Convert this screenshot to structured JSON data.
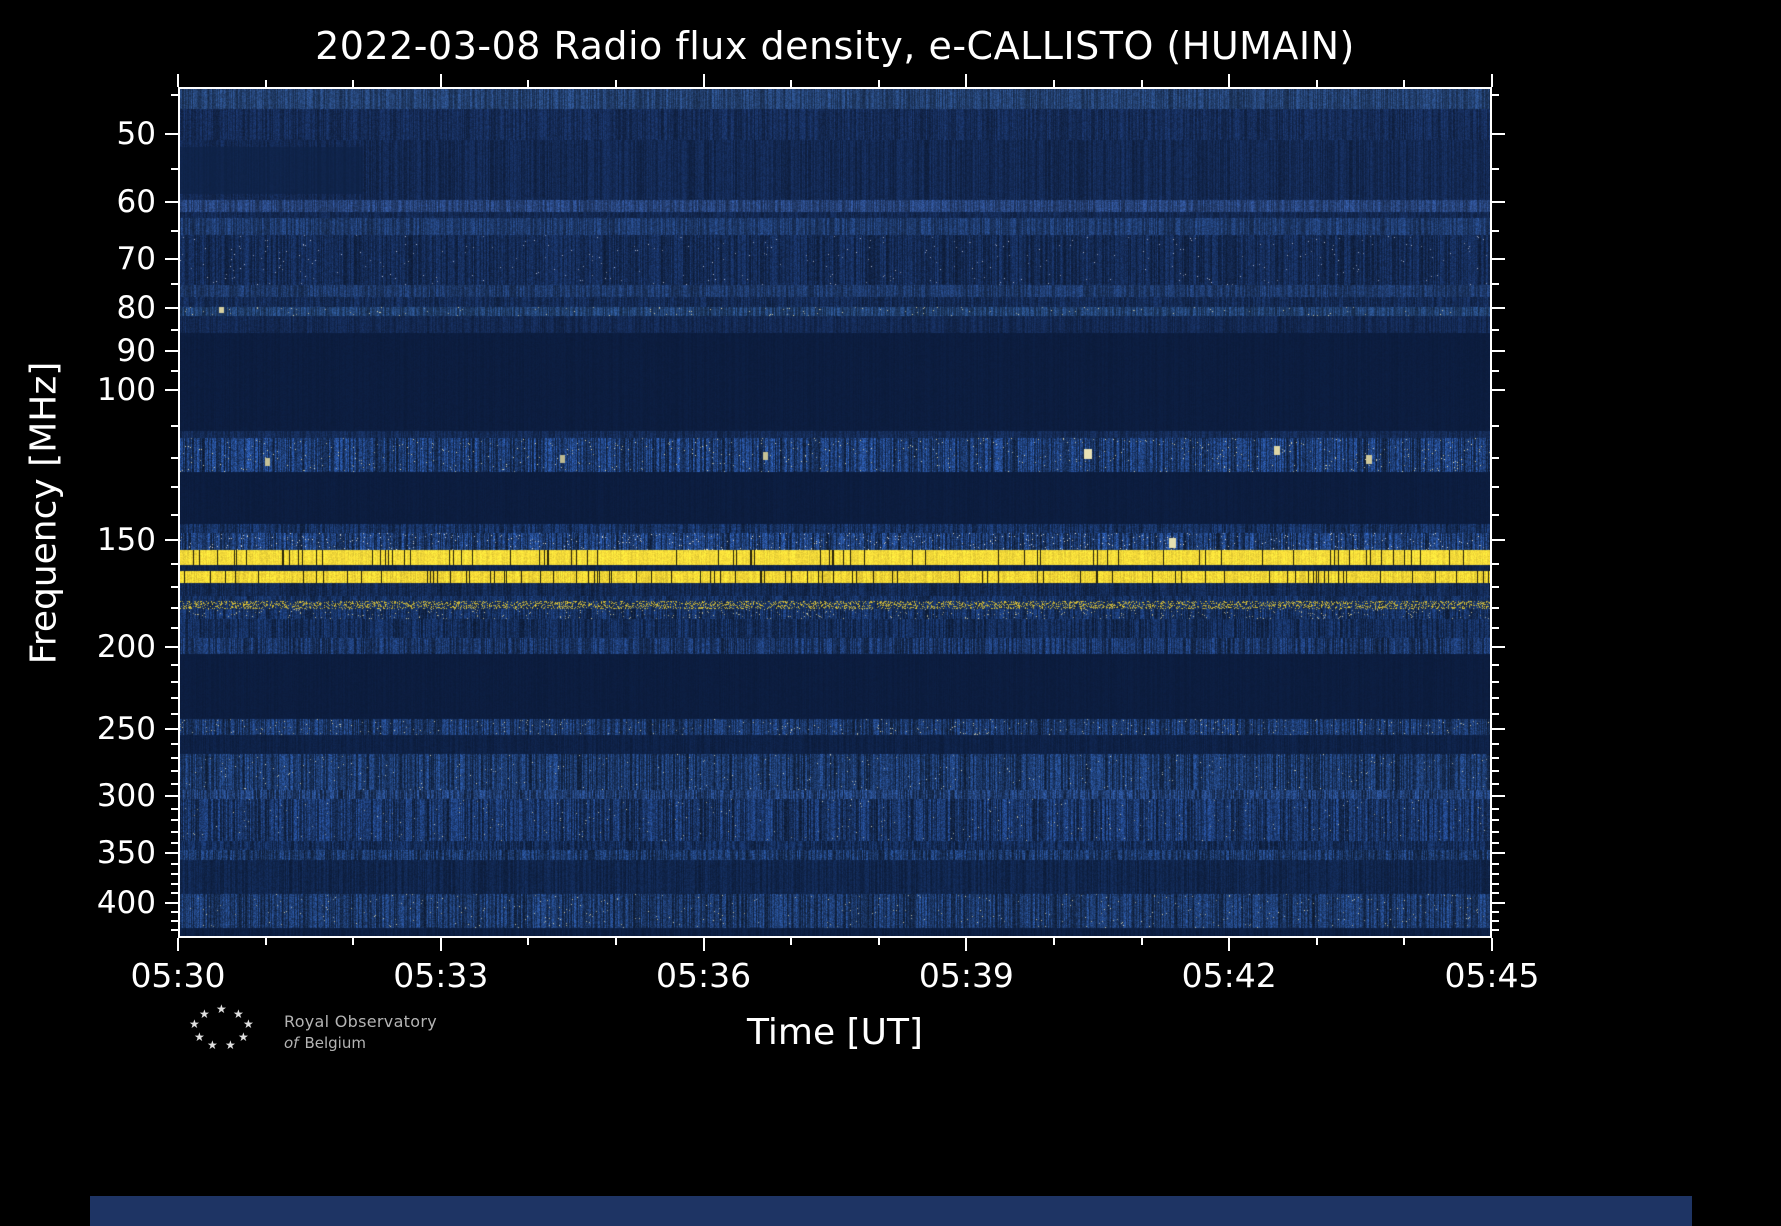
{
  "title": "2022-03-08 Radio flux density, e-CALLISTO (HUMAIN)",
  "xlabel": "Time [UT]",
  "ylabel": "Frequency [MHz]",
  "footer": {
    "line1": "Royal Observatory",
    "line2a": "of",
    "line2b": "Belgium",
    "star_icon": "★"
  },
  "chart_data": {
    "type": "heatmap",
    "title": "2022-03-08 Radio flux density, e-CALLISTO (HUMAIN)",
    "xlabel": "Time [UT]",
    "ylabel": "Frequency [MHz]",
    "x_ticks": [
      "05:30",
      "05:33",
      "05:36",
      "05:39",
      "05:42",
      "05:45"
    ],
    "x_tick_minutes": [
      0,
      3,
      6,
      9,
      12,
      15
    ],
    "time_range_minutes": [
      0,
      15
    ],
    "freq_scale": "log",
    "freq_axis_inverted_downward": true,
    "freq_range": [
      44,
      440
    ],
    "y_ticks": [
      50,
      60,
      70,
      80,
      90,
      100,
      150,
      200,
      250,
      300,
      350,
      400
    ],
    "y_tick_labels": [
      "50",
      "60",
      "70",
      "80",
      "90",
      "100",
      "150",
      "200",
      "250",
      "300",
      "350",
      "400"
    ],
    "y_minor_ticks": [
      45,
      55,
      65,
      75,
      85,
      95,
      110,
      120,
      130,
      140,
      160,
      170,
      180,
      190,
      210,
      220,
      230,
      240,
      260,
      270,
      280,
      290,
      310,
      320,
      330,
      340,
      360,
      370,
      380,
      390,
      410,
      420,
      430
    ],
    "grid": false,
    "legend": "none",
    "colors": {
      "figure_background": "#000000",
      "plot_background": "#0c1d3f",
      "axis": "#ffffff",
      "text": "#ffffff",
      "rfi_yellow": "#f6dc3a",
      "noise_blue": "#1b3767"
    },
    "features": [
      "Continuous bright RFI lines near 157 MHz and 165 MHz with small dark time gaps",
      "Intermittent dotted RFI line near 179 MHz",
      "Speckled broadband noise bands near 114-124, 147-154, 186-204, 244-255, 268-358 and 393-430 MHz",
      "Quiet dark bands near 86-112, 125-143, 205-244 and 358-393 MHz",
      "Slightly darker patch at 52-58 MHz from 05:30 to about 05:32"
    ],
    "bands": [
      {
        "f_start": 44.0,
        "f_end": 46.5,
        "color": "#23406f",
        "col_noise": 0.3,
        "pix_noise": 0.2
      },
      {
        "f_start": 46.5,
        "f_end": 50.5,
        "color": "#152b56",
        "col_noise": 0.25,
        "pix_noise": 0.18
      },
      {
        "f_start": 50.5,
        "f_end": 59.5,
        "color": "#132851",
        "col_noise": 0.22,
        "pix_noise": 0.15
      },
      {
        "f_start": 59.5,
        "f_end": 61.5,
        "color": "#264278",
        "col_noise": 0.3,
        "pix_noise": 0.2
      },
      {
        "f_start": 61.5,
        "f_end": 62.5,
        "color": "#132851",
        "col_noise": 0.2,
        "pix_noise": 0.15
      },
      {
        "f_start": 62.5,
        "f_end": 65.5,
        "color": "#1e3a6c",
        "col_noise": 0.3,
        "pix_noise": 0.2
      },
      {
        "f_start": 65.5,
        "f_end": 75.0,
        "color": "#142a54",
        "col_noise": 0.3,
        "pix_noise": 0.2,
        "speckle": 0.005,
        "speckle_color": "#b8c0d8"
      },
      {
        "f_start": 75.0,
        "f_end": 77.5,
        "color": "#1d3868",
        "col_noise": 0.3,
        "pix_noise": 0.2
      },
      {
        "f_start": 77.5,
        "f_end": 79.5,
        "color": "#142a54",
        "col_noise": 0.25,
        "pix_noise": 0.18
      },
      {
        "f_start": 79.5,
        "f_end": 81.5,
        "color": "#21406f",
        "col_noise": 0.35,
        "pix_noise": 0.2,
        "speckle": 0.01,
        "speckle_color": "#e0d8a8"
      },
      {
        "f_start": 81.5,
        "f_end": 85.5,
        "color": "#132851",
        "col_noise": 0.2,
        "pix_noise": 0.15
      },
      {
        "f_start": 85.5,
        "f_end": 111.5,
        "color": "#0c1d3f",
        "col_noise": 0.05,
        "pix_noise": 0.06
      },
      {
        "f_start": 111.5,
        "f_end": 113.5,
        "color": "#142a54",
        "col_noise": 0.2,
        "pix_noise": 0.15
      },
      {
        "f_start": 113.5,
        "f_end": 124.5,
        "color": "#1c3a6f",
        "col_noise": 0.5,
        "pix_noise": 0.3,
        "speckle": 0.012,
        "speckle_color": "#e9e2b4"
      },
      {
        "f_start": 124.5,
        "f_end": 143.5,
        "color": "#0c1d3f",
        "col_noise": 0.05,
        "pix_noise": 0.06
      },
      {
        "f_start": 143.5,
        "f_end": 147.0,
        "color": "#16305f",
        "col_noise": 0.35,
        "pix_noise": 0.22
      },
      {
        "f_start": 147.0,
        "f_end": 154.0,
        "color": "#1d3b70",
        "col_noise": 0.5,
        "pix_noise": 0.3,
        "speckle": 0.02,
        "speckle_color": "#f0ece0"
      },
      {
        "f_start": 154.0,
        "f_end": 160.5,
        "color": "#f6dc3a",
        "col_noise": 0.06,
        "pix_noise": 0.08,
        "bright": true,
        "gap_prob": 0.05
      },
      {
        "f_start": 160.5,
        "f_end": 163.0,
        "color": "#0e2349",
        "col_noise": 0.15,
        "pix_noise": 0.12
      },
      {
        "f_start": 163.0,
        "f_end": 168.5,
        "color": "#f2d636",
        "col_noise": 0.08,
        "pix_noise": 0.1,
        "bright": true,
        "gap_prob": 0.07
      },
      {
        "f_start": 168.5,
        "f_end": 174.5,
        "color": "#132952",
        "col_noise": 0.25,
        "pix_noise": 0.18
      },
      {
        "f_start": 174.5,
        "f_end": 177.0,
        "color": "#16305f",
        "col_noise": 0.3,
        "pix_noise": 0.2
      },
      {
        "f_start": 177.0,
        "f_end": 181.0,
        "color": "#16305f",
        "col_noise": 0.3,
        "pix_noise": 0.2,
        "speckle": 0.32,
        "speckle_color": "#f1d232"
      },
      {
        "f_start": 181.0,
        "f_end": 186.0,
        "color": "#16305f",
        "col_noise": 0.4,
        "pix_noise": 0.25,
        "speckle": 0.03,
        "speckle_color": "#cfc89e"
      },
      {
        "f_start": 186.0,
        "f_end": 195.5,
        "color": "#142c58",
        "col_noise": 0.35,
        "pix_noise": 0.22
      },
      {
        "f_start": 195.5,
        "f_end": 204.5,
        "color": "#1a3566",
        "col_noise": 0.4,
        "pix_noise": 0.25
      },
      {
        "f_start": 204.5,
        "f_end": 244.0,
        "color": "#0c1d3f",
        "col_noise": 0.05,
        "pix_noise": 0.06
      },
      {
        "f_start": 244.0,
        "f_end": 255.0,
        "color": "#1b3768",
        "col_noise": 0.45,
        "pix_noise": 0.28,
        "speckle": 0.015,
        "speckle_color": "#d8d4b0"
      },
      {
        "f_start": 255.0,
        "f_end": 268.0,
        "color": "#0e2146",
        "col_noise": 0.12,
        "pix_noise": 0.1
      },
      {
        "f_start": 268.0,
        "f_end": 296.0,
        "color": "#1b3767",
        "col_noise": 0.45,
        "pix_noise": 0.28,
        "speckle": 0.006,
        "speckle_color": "#d8d8c0"
      },
      {
        "f_start": 296.0,
        "f_end": 303.0,
        "color": "#203d70",
        "col_noise": 0.45,
        "pix_noise": 0.25
      },
      {
        "f_start": 303.0,
        "f_end": 340.0,
        "color": "#193465",
        "col_noise": 0.45,
        "pix_noise": 0.28,
        "speckle": 0.005,
        "speckle_color": "#d0d0b8"
      },
      {
        "f_start": 340.0,
        "f_end": 348.0,
        "color": "#142c58",
        "col_noise": 0.35,
        "pix_noise": 0.22
      },
      {
        "f_start": 348.0,
        "f_end": 358.0,
        "color": "#1b3767",
        "col_noise": 0.45,
        "pix_noise": 0.28
      },
      {
        "f_start": 358.0,
        "f_end": 393.0,
        "color": "#10254c",
        "col_noise": 0.2,
        "pix_noise": 0.15
      },
      {
        "f_start": 393.0,
        "f_end": 430.0,
        "color": "#1b3767",
        "col_noise": 0.45,
        "pix_noise": 0.28,
        "speckle": 0.008,
        "speckle_color": "#d8d4b0"
      },
      {
        "f_start": 430.0,
        "f_end": 440.0,
        "color": "#0d1f42",
        "col_noise": 0.1,
        "pix_noise": 0.08
      }
    ],
    "patches": [
      {
        "t_start": 0.0,
        "t_end": 0.14,
        "f_start": 51.5,
        "f_end": 58.5,
        "color": "#0e2247",
        "alpha": 0.75
      }
    ],
    "bright_spots": [
      {
        "t": 0.69,
        "f": 117,
        "w": 8,
        "h": 10,
        "color": "#eae3b6"
      },
      {
        "t": 0.835,
        "f": 116,
        "w": 6,
        "h": 9,
        "color": "#ddd6a6"
      },
      {
        "t": 0.905,
        "f": 119,
        "w": 6,
        "h": 9,
        "color": "#cfc99c"
      },
      {
        "t": 0.755,
        "f": 149,
        "w": 7,
        "h": 10,
        "color": "#e6e0b0"
      },
      {
        "t": 0.065,
        "f": 120,
        "w": 5,
        "h": 8,
        "color": "#c6c296"
      },
      {
        "t": 0.29,
        "f": 119,
        "w": 5,
        "h": 8,
        "color": "#beba90"
      },
      {
        "t": 0.445,
        "f": 118,
        "w": 5,
        "h": 8,
        "color": "#c6c296"
      },
      {
        "t": 0.03,
        "f": 79.5,
        "w": 5,
        "h": 6,
        "color": "#d8d0a0"
      }
    ]
  }
}
